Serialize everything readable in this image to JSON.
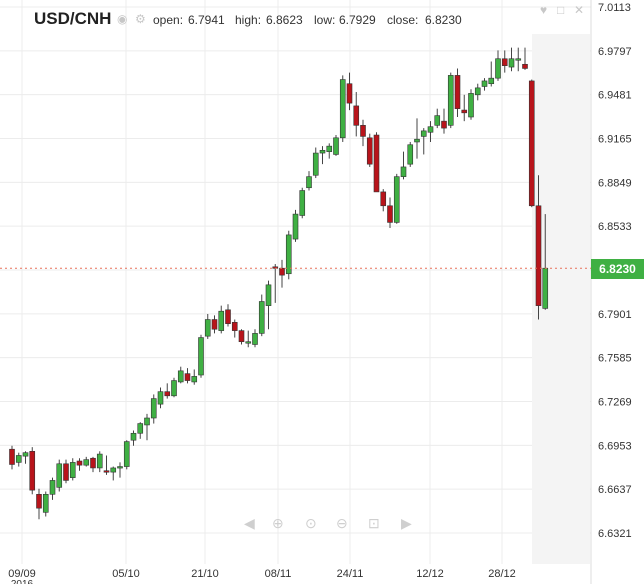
{
  "header": {
    "symbol": "USD/CNH",
    "open_label": "open:",
    "open_value": "6.7941",
    "high_label": "high:",
    "high_value": "6.8623",
    "low_label": "low:",
    "low_value": "6.7929",
    "close_label": "close:",
    "close_value": "6.8230"
  },
  "icons": {
    "header": [
      "eye-icon",
      "settings-icon"
    ],
    "top_right": [
      "heart-icon",
      "square-icon",
      "close-icon"
    ],
    "navigation": [
      "scroll-left-icon",
      "zoom-in-icon",
      "zoom-reset-icon",
      "zoom-out-icon",
      "zoom-fit-icon",
      "scroll-right-icon"
    ]
  },
  "colors": {
    "up": "#3fb043",
    "down": "#b8141b",
    "last_price_line": "#e8705a",
    "price_tag": "#3fb043"
  },
  "chart_data": {
    "type": "candlestick",
    "title": "USD/CNH",
    "y_ticks": [
      "7.0113",
      "6.9797",
      "6.9481",
      "6.9165",
      "6.8849",
      "6.8533",
      "6.8217",
      "6.7901",
      "6.7585",
      "6.7269",
      "6.6953",
      "6.6637",
      "6.6321"
    ],
    "x_labels": [
      "09/09",
      "05/10",
      "21/10",
      "08/11",
      "24/11",
      "12/12",
      "28/12"
    ],
    "x_sublabel": "2016",
    "ylim": [
      6.6321,
      7.0113
    ],
    "last_price": "6.8230",
    "grid": true,
    "candles": [
      [
        6.6925,
        6.695,
        6.678,
        6.6815
      ],
      [
        6.683,
        6.69,
        6.68,
        6.688
      ],
      [
        6.6875,
        6.691,
        6.682,
        6.69
      ],
      [
        6.691,
        6.694,
        6.66,
        6.663
      ],
      [
        6.66,
        6.664,
        6.642,
        6.65
      ],
      [
        6.647,
        6.662,
        6.644,
        6.66
      ],
      [
        6.66,
        6.672,
        6.656,
        6.67
      ],
      [
        6.665,
        6.685,
        6.662,
        6.682
      ],
      [
        6.682,
        6.685,
        6.668,
        6.67
      ],
      [
        6.672,
        6.686,
        6.67,
        6.683
      ],
      [
        6.684,
        6.686,
        6.677,
        6.681
      ],
      [
        6.681,
        6.687,
        6.68,
        6.685
      ],
      [
        6.686,
        6.687,
        6.676,
        6.679
      ],
      [
        6.679,
        6.691,
        6.676,
        6.689
      ],
      [
        6.677,
        6.688,
        6.674,
        6.676
      ],
      [
        6.676,
        6.68,
        6.67,
        6.679
      ],
      [
        6.679,
        6.683,
        6.672,
        6.68
      ],
      [
        6.68,
        6.699,
        6.678,
        6.698
      ],
      [
        6.699,
        6.706,
        6.695,
        6.704
      ],
      [
        6.704,
        6.712,
        6.7,
        6.711
      ],
      [
        6.71,
        6.718,
        6.699,
        6.715
      ],
      [
        6.715,
        6.732,
        6.711,
        6.729
      ],
      [
        6.725,
        6.737,
        6.722,
        6.734
      ],
      [
        6.734,
        6.74,
        6.729,
        6.731
      ],
      [
        6.731,
        6.744,
        6.73,
        6.742
      ],
      [
        6.741,
        6.752,
        6.74,
        6.749
      ],
      [
        6.747,
        6.751,
        6.74,
        6.742
      ],
      [
        6.741,
        6.75,
        6.739,
        6.745
      ],
      [
        6.746,
        6.775,
        6.744,
        6.773
      ],
      [
        6.774,
        6.79,
        6.772,
        6.786
      ],
      [
        6.786,
        6.789,
        6.776,
        6.779
      ],
      [
        6.778,
        6.796,
        6.776,
        6.792
      ],
      [
        6.793,
        6.797,
        6.781,
        6.783
      ],
      [
        6.784,
        6.786,
        6.773,
        6.778
      ],
      [
        6.778,
        6.779,
        6.768,
        6.77
      ],
      [
        6.769,
        6.778,
        6.766,
        6.77
      ],
      [
        6.768,
        6.779,
        6.766,
        6.776
      ],
      [
        6.776,
        6.804,
        6.774,
        6.799
      ],
      [
        6.796,
        6.814,
        6.779,
        6.811
      ],
      [
        6.824,
        6.826,
        6.798,
        6.823
      ],
      [
        6.823,
        6.829,
        6.809,
        6.818
      ],
      [
        6.819,
        6.85,
        6.815,
        6.847
      ],
      [
        6.844,
        6.865,
        6.842,
        6.862
      ],
      [
        6.861,
        6.881,
        6.859,
        6.879
      ],
      [
        6.881,
        6.893,
        6.879,
        6.889
      ],
      [
        6.89,
        6.91,
        6.888,
        6.906
      ],
      [
        6.906,
        6.911,
        6.898,
        6.908
      ],
      [
        6.907,
        6.913,
        6.902,
        6.911
      ],
      [
        6.905,
        6.919,
        6.904,
        6.917
      ],
      [
        6.917,
        6.962,
        6.914,
        6.959
      ],
      [
        6.956,
        6.964,
        6.937,
        6.942
      ],
      [
        6.94,
        6.95,
        6.918,
        6.926
      ],
      [
        6.926,
        6.93,
        6.911,
        6.918
      ],
      [
        6.917,
        6.92,
        6.896,
        6.898
      ],
      [
        6.919,
        6.921,
        6.881,
        6.878
      ],
      [
        6.878,
        6.88,
        6.864,
        6.868
      ],
      [
        6.868,
        6.874,
        6.852,
        6.856
      ],
      [
        6.856,
        6.891,
        6.855,
        6.889
      ],
      [
        6.889,
        6.907,
        6.887,
        6.896
      ],
      [
        6.898,
        6.914,
        6.896,
        6.912
      ],
      [
        6.914,
        6.931,
        6.902,
        6.916
      ],
      [
        6.918,
        6.924,
        6.905,
        6.922
      ],
      [
        6.921,
        6.929,
        6.914,
        6.925
      ],
      [
        6.926,
        6.938,
        6.924,
        6.933
      ],
      [
        6.929,
        6.938,
        6.92,
        6.924
      ],
      [
        6.926,
        6.964,
        6.924,
        6.962
      ],
      [
        6.962,
        6.967,
        6.932,
        6.938
      ],
      [
        6.937,
        6.948,
        6.929,
        6.935
      ],
      [
        6.932,
        6.952,
        6.93,
        6.949
      ],
      [
        6.948,
        6.956,
        6.944,
        6.953
      ],
      [
        6.954,
        6.96,
        6.951,
        6.958
      ],
      [
        6.956,
        6.972,
        6.954,
        6.96
      ],
      [
        6.96,
        6.98,
        6.958,
        6.974
      ],
      [
        6.974,
        6.98,
        6.964,
        6.969
      ],
      [
        6.968,
        6.982,
        6.965,
        6.974
      ],
      [
        6.974,
        6.982,
        6.965,
        6.974
      ],
      [
        6.97,
        6.982,
        6.966,
        6.967
      ],
      [
        6.958,
        6.959,
        6.867,
        6.868
      ],
      [
        6.868,
        6.89,
        6.786,
        6.796
      ],
      [
        6.794,
        6.862,
        6.793,
        6.823
      ]
    ]
  }
}
